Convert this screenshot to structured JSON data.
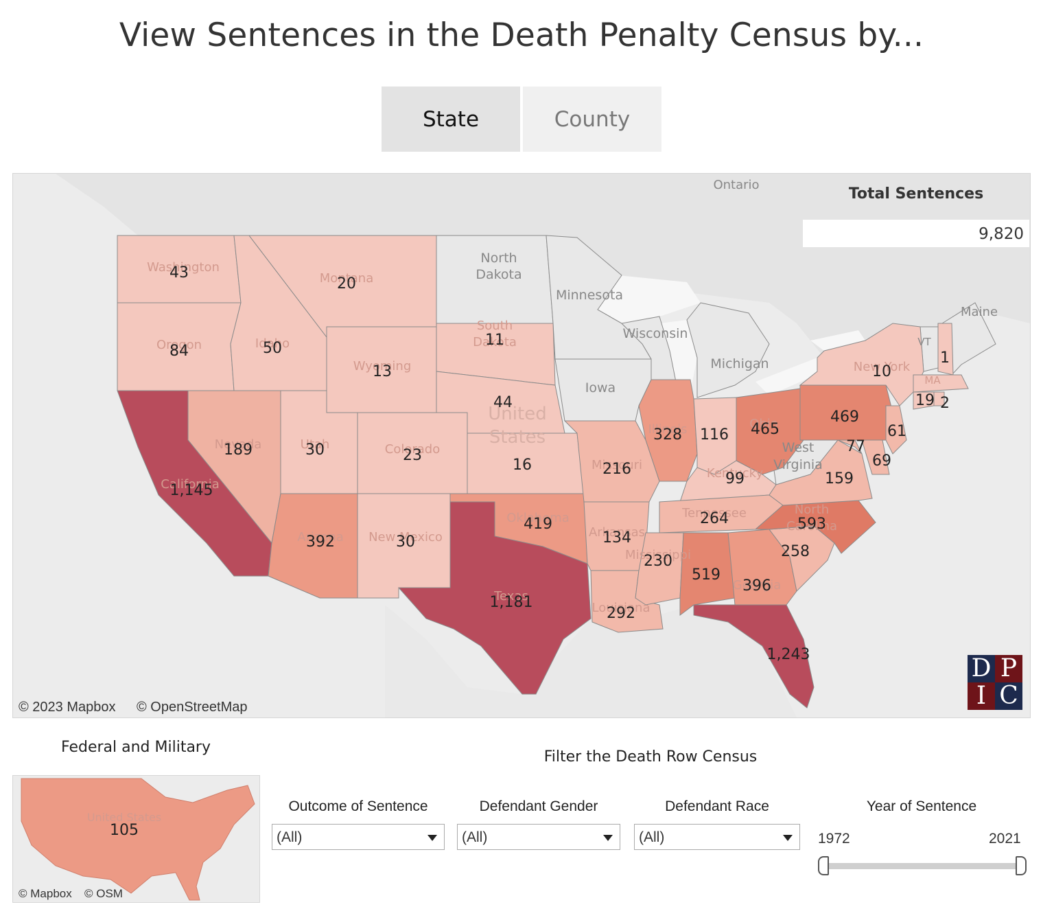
{
  "page_title": "View Sentences in the Death Penalty Census by...",
  "tabs": [
    {
      "label": "State",
      "selected": true
    },
    {
      "label": "County",
      "selected": false
    }
  ],
  "total": {
    "label": "Total Sentences",
    "value": "9,820"
  },
  "map_attribution": {
    "mapbox": "© 2023 Mapbox",
    "osm": "© OpenStreetMap"
  },
  "logo": {
    "letters": [
      "D",
      "P",
      "I",
      "C"
    ],
    "colors": {
      "navy": "#1d2a4d",
      "maroon": "#6e1419"
    }
  },
  "colors": {
    "low": "#f4c8be",
    "mid": "#ec9a85",
    "high": "#b84c5c",
    "no_data": "#e8e8e8",
    "background": "#ececec"
  },
  "basemap_labels": {
    "ontario": "Ontario",
    "north_dakota": "North Dakota",
    "minnesota": "Minnesota",
    "wisconsin": "Wisconsin",
    "michigan": "Michigan",
    "iowa": "Iowa",
    "maine": "Maine",
    "vt": "VT",
    "west_virginia": "West Virginia",
    "united_states": "United States"
  },
  "faint_state_labels": {
    "washington": "Washington",
    "oregon": "Oregon",
    "idaho": "Idaho",
    "montana": "Montana",
    "wyoming": "Wyoming",
    "south_dakota": "South Dakota",
    "nevada": "Nevada",
    "utah": "Utah",
    "colorado": "Colorado",
    "california": "California",
    "arizona": "Arizona",
    "new_mexico": "New Mexico",
    "oklahoma": "Oklahoma",
    "missouri": "Missouri",
    "illinois": "Illinois",
    "arkansas": "Arkansas",
    "mississippi": "Mississippi",
    "louisiana": "Louisiana",
    "tennessee": "Tennessee",
    "kentucky": "Kentucky",
    "north_carolina": "North Carolina",
    "georgia": "Georgia",
    "new_york": "New York",
    "ohio": "Ohio",
    "texas": "Texas",
    "ma": "MA"
  },
  "state_values": {
    "washington": "43",
    "oregon": "84",
    "california": "1,145",
    "idaho": "50",
    "nevada": "189",
    "montana": "20",
    "wyoming": "13",
    "utah": "30",
    "arizona": "392",
    "colorado": "23",
    "new_mexico": "30",
    "south_dakota": "11",
    "nebraska": "44",
    "kansas": "16",
    "oklahoma": "419",
    "texas": "1,181",
    "missouri": "216",
    "arkansas": "134",
    "louisiana": "292",
    "illinois": "328",
    "indiana": "116",
    "kentucky": "99",
    "tennessee": "264",
    "mississippi": "230",
    "alabama": "519",
    "georgia": "396",
    "florida": "1,243",
    "ohio": "465",
    "pennsylvania": "469",
    "new_york": "10",
    "new_hampshire": "1",
    "connecticut": "19",
    "rhode_island": "2",
    "new_jersey": "61",
    "maryland": "77",
    "delaware": "69",
    "virginia": "159",
    "north_carolina": "593",
    "south_carolina": "258"
  },
  "federal": {
    "title": "Federal and Military",
    "value": "105",
    "faint_label": "United States",
    "attribution": {
      "mapbox": "© Mapbox",
      "osm": "© OSM"
    }
  },
  "filters": {
    "title": "Filter the Death Row Census",
    "outcome": {
      "label": "Outcome of Sentence",
      "value": "(All)"
    },
    "gender": {
      "label": "Defendant Gender",
      "value": "(All)"
    },
    "race": {
      "label": "Defendant Race",
      "value": "(All)"
    },
    "year": {
      "label": "Year of Sentence",
      "min": "1972",
      "max": "2021"
    }
  }
}
